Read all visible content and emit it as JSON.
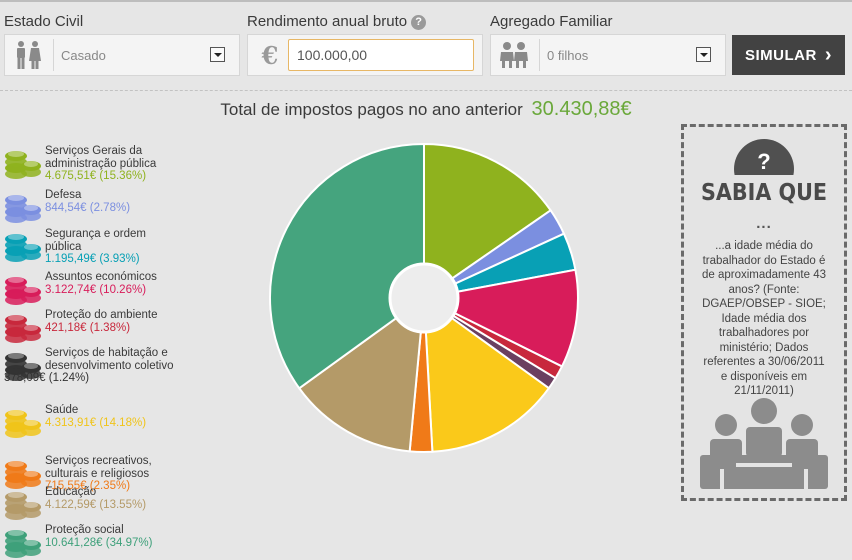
{
  "filters": {
    "civil_label": "Estado Civil",
    "civil_value": "Casado",
    "income_label": "Rendimento anual bruto",
    "income_help": "?",
    "currency_symbol": "€",
    "income_value": "100.000,00",
    "household_label": "Agregado Familiar",
    "household_value": "0 filhos",
    "simulate_label": "SIMULAR",
    "simulate_arrow": "›"
  },
  "summary": {
    "label": "Total de impostos pagos no ano anterior",
    "total": "30.430,88€"
  },
  "legend": [
    {
      "name": "Serviços Gerais da administração pública",
      "value": "4.675,51€ (15.36%)",
      "color": "#8fb21e"
    },
    {
      "name": "Defesa",
      "value": "844,54€ (2.78%)",
      "color": "#7b8fe0"
    },
    {
      "name": "Segurança e ordem pública",
      "value": "1.195,49€ (3.93%)",
      "color": "#08a0b5"
    },
    {
      "name": "Assuntos económicos",
      "value": "3.122,74€ (10.26%)",
      "color": "#d81c5a"
    },
    {
      "name": "Proteção do ambiente",
      "value": "421,18€ (1.38%)",
      "color": "#c8283c"
    },
    {
      "name": "Serviços de habitação e desenvolvimento coletivo",
      "value": "378,09€ (1.24%)",
      "color": "#333333"
    },
    {
      "name": "Saúde",
      "value": "4.313,91€ (14.18%)",
      "color": "#f0c41a"
    },
    {
      "name": "Serviços recreativos, culturais e religiosos",
      "value": "715,55€ (2.35%)",
      "color": "#f07a18"
    },
    {
      "name": "Educação",
      "value": "4.122,59€ (13.55%)",
      "color": "#b49a68"
    },
    {
      "name": "Proteção social",
      "value": "10.641,28€ (34.97%)",
      "color": "#3ea07a"
    }
  ],
  "chart_data": {
    "type": "pie",
    "style": "donut",
    "title": "",
    "categories": [
      "Serviços Gerais da administração pública",
      "Defesa",
      "Segurança e ordem pública",
      "Assuntos económicos",
      "Proteção do ambiente",
      "Serviços de habitação e desenvolvimento coletivo",
      "Saúde",
      "Serviços recreativos, culturais e religiosos",
      "Educação",
      "Proteção social"
    ],
    "values": [
      4675.51,
      844.54,
      1195.49,
      3122.74,
      421.18,
      378.09,
      4313.91,
      715.55,
      4122.59,
      10641.28
    ],
    "percent": [
      15.36,
      2.78,
      3.93,
      10.26,
      1.38,
      1.24,
      14.18,
      2.35,
      13.55,
      34.97
    ],
    "colors": [
      "#8fb21e",
      "#7b8fe0",
      "#08a0b5",
      "#d81c5a",
      "#c8283c",
      "#6b4060",
      "#fac91a",
      "#f07a18",
      "#b49a68",
      "#45a47e"
    ]
  },
  "sabia": {
    "question": "?",
    "title": "SABIA QUE",
    "dots": "...",
    "fact": "...a idade média do trabalhador do Estado é de aproximadamente 43 anos? (Fonte: DGAEP/OBSEP - SIOE; Idade média dos trabalhadores por ministério; Dados referentes a 30/06/2011 e disponíveis em 21/11/2011)"
  },
  "icons": {
    "civil": "couple-icon",
    "household": "children-icon",
    "arrow": "chevron-right-icon",
    "coin": "coin-stack-icon",
    "people": "people-group-icon"
  }
}
